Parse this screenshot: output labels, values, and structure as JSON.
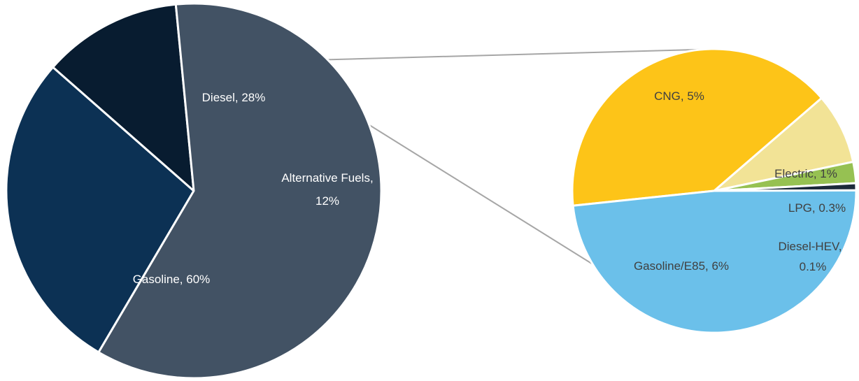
{
  "chart_data": [
    {
      "type": "pie",
      "title": "",
      "unit": "%",
      "slices": [
        {
          "label": "Diesel, 28%",
          "name": "Diesel",
          "value": 28,
          "color": "#0c3154",
          "label_color": "#ffffff"
        },
        {
          "label": "Alternative Fuels, 12%",
          "name": "Alternative Fuels",
          "value": 12,
          "color": "#081c30",
          "label_color": "#ffffff"
        },
        {
          "label": "Gasoline, 60%",
          "name": "Gasoline",
          "value": 60,
          "color": "#425264",
          "label_color": "#ffffff"
        }
      ],
      "exploded_slice": "Alternative Fuels"
    },
    {
      "type": "pie",
      "title": "",
      "unit": "%",
      "slices": [
        {
          "label": "CNG, 5%",
          "name": "CNG",
          "value": 5,
          "color": "#fdc418",
          "label_color": "#404040"
        },
        {
          "label": "Electric, 1%",
          "name": "Electric",
          "value": 1,
          "color": "#f2e396",
          "label_color": "#404040"
        },
        {
          "label": "LPG, 0.3%",
          "name": "LPG",
          "value": 0.3,
          "color": "#96c152",
          "label_color": "#404040"
        },
        {
          "label": "Diesel-HEV, 0.1%",
          "name": "Diesel-HEV",
          "value": 0.1,
          "color": "#1c2a3a",
          "label_color": "#404040"
        },
        {
          "label": "Gasoline/E85, 6%",
          "name": "Gasoline/E85",
          "value": 6,
          "color": "#6bc0ea",
          "label_color": "#404040"
        }
      ]
    }
  ],
  "connector_color": "#a6a6a6"
}
